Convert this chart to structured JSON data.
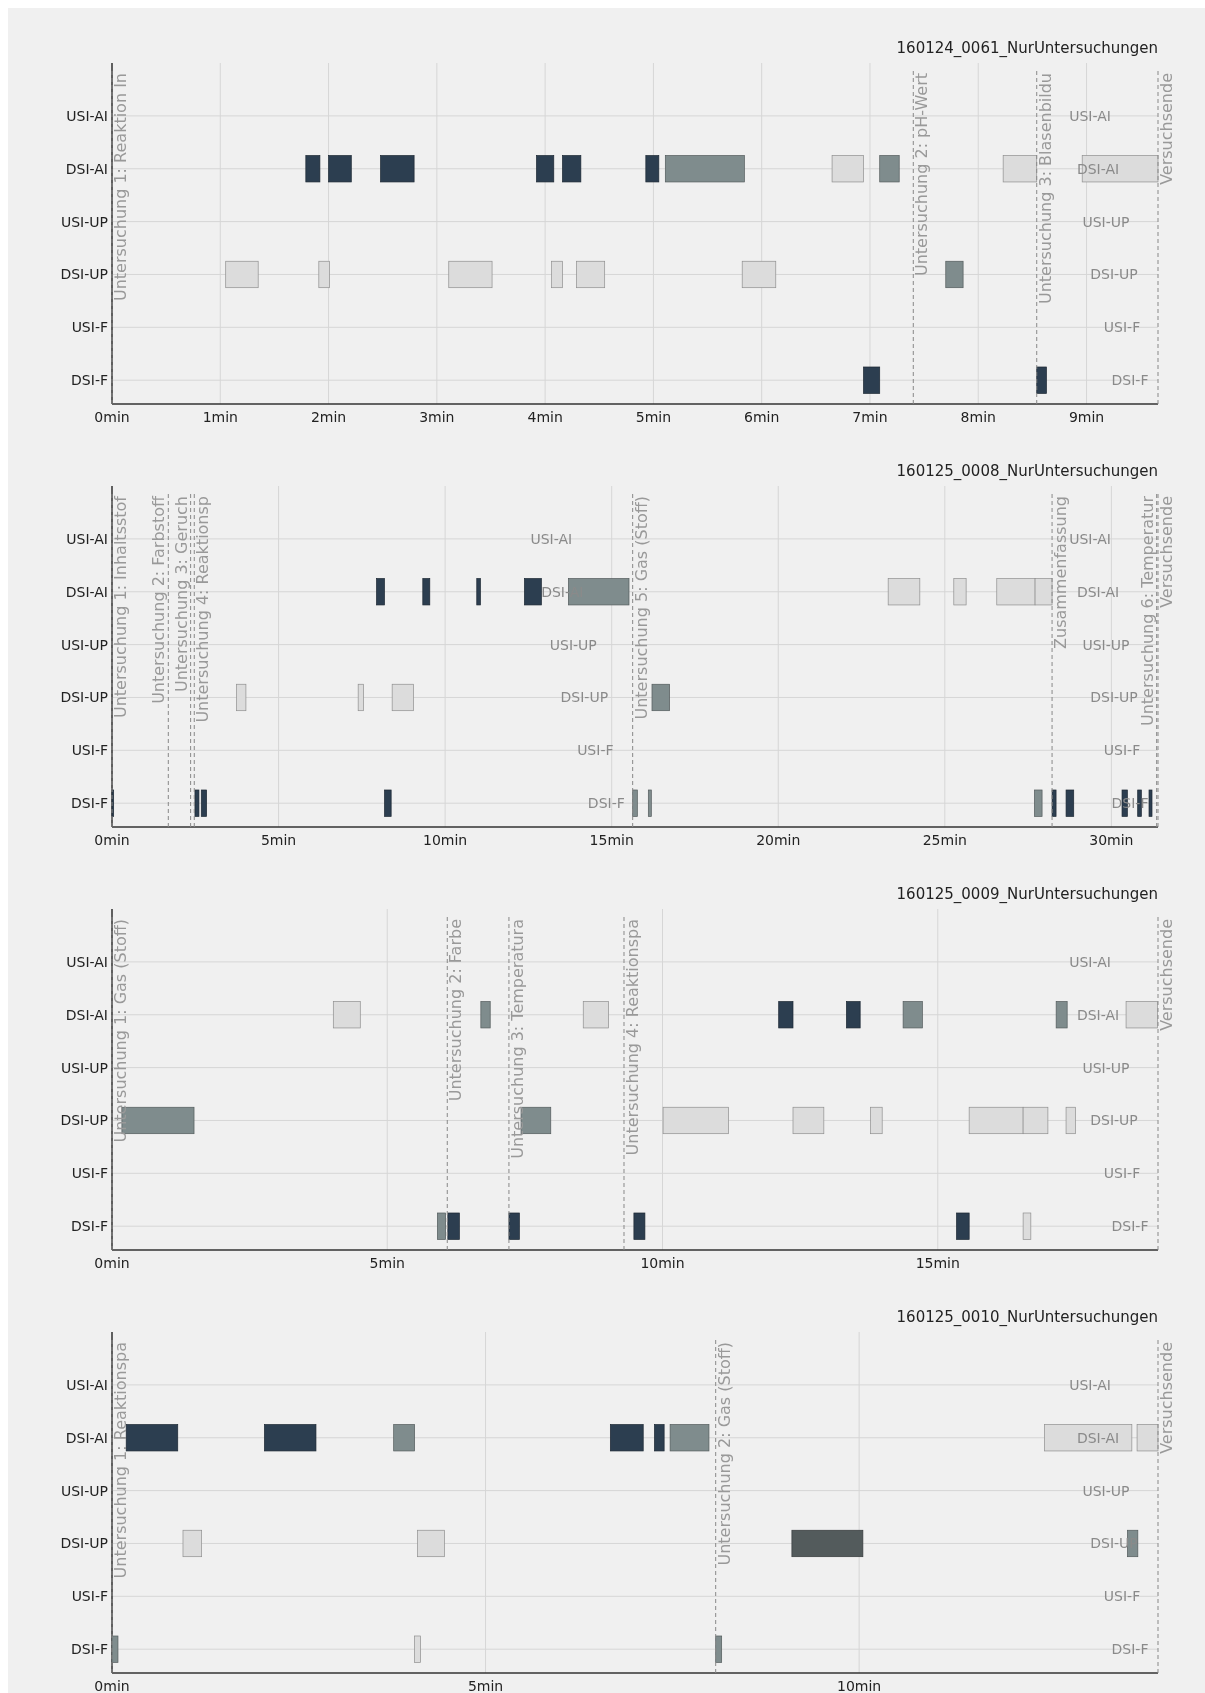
{
  "chart_data": [
    {
      "type": "bar",
      "orientation": "horizontal",
      "title": "160124_0061_NurUntersuchungen",
      "categories": [
        "USI-AI",
        "DSI-AI",
        "USI-UP",
        "DSI-UP",
        "USI-F",
        "DSI-F"
      ],
      "y2_categories": [
        "USI-AI",
        "DSI-AI",
        "USI-UP",
        "DSI-UP",
        "USI-F",
        "DSI-F"
      ],
      "xlim": [
        0,
        9.66
      ],
      "xticks": [
        {
          "value": 0,
          "label": "0min"
        },
        {
          "value": 1,
          "label": "1min"
        },
        {
          "value": 2,
          "label": "2min"
        },
        {
          "value": 3,
          "label": "3min"
        },
        {
          "value": 4,
          "label": "4min"
        },
        {
          "value": 5,
          "label": "5min"
        },
        {
          "value": 6,
          "label": "6min"
        },
        {
          "value": 7,
          "label": "7min"
        },
        {
          "value": 8,
          "label": "8min"
        },
        {
          "value": 9,
          "label": "9min"
        }
      ],
      "grid": true,
      "ref_lines": [
        {
          "axis": "x",
          "value": 0,
          "label": "Untersuchung 1: Reaktion In",
          "line_style": "dashed"
        },
        {
          "axis": "x",
          "value": 7.4,
          "label": "Untersuchung 2: pH-Wert",
          "line_style": "dashed"
        },
        {
          "axis": "x",
          "value": 8.54,
          "label": "Untersuchung 3: Blasenbildu",
          "line_style": "dashed"
        },
        {
          "axis": "x",
          "value": 9.66,
          "label": "Versuchsende",
          "line_style": "dashed"
        }
      ],
      "series": [
        {
          "color": "#2c3e50",
          "base": [
            null,
            1.79,
            null,
            null,
            null,
            6.94
          ],
          "values": [
            null,
            0.13,
            null,
            null,
            null,
            0.15
          ]
        },
        {
          "color": "#2c3e50",
          "base": [
            null,
            2.0,
            null,
            null,
            null,
            8.54
          ],
          "values": [
            null,
            0.21,
            null,
            null,
            null,
            0.09
          ]
        },
        {
          "color": "#2c3e50",
          "base": [
            null,
            2.48,
            null,
            null,
            null,
            null
          ],
          "values": [
            null,
            0.31,
            null,
            null,
            null,
            null
          ]
        },
        {
          "color": "#2c3e50",
          "base": [
            null,
            3.92,
            null,
            null,
            null,
            null
          ],
          "values": [
            null,
            0.16,
            null,
            null,
            null,
            null
          ]
        },
        {
          "color": "#2c3e50",
          "base": [
            null,
            4.16,
            null,
            null,
            null,
            null
          ],
          "values": [
            null,
            0.17,
            null,
            null,
            null,
            null
          ]
        },
        {
          "color": "#2c3e50",
          "base": [
            null,
            4.93,
            null,
            null,
            null,
            null
          ],
          "values": [
            null,
            0.12,
            null,
            null,
            null,
            null
          ]
        },
        {
          "color": "#7f8c8d",
          "base": [
            null,
            5.11,
            null,
            7.7,
            null,
            null
          ],
          "values": [
            null,
            0.73,
            null,
            0.16,
            null,
            null
          ]
        },
        {
          "color": "#7f8c8d",
          "base": [
            null,
            7.09,
            null,
            null,
            null,
            null
          ],
          "values": [
            null,
            0.18,
            null,
            null,
            null,
            null
          ]
        },
        {
          "color": "#dcdcdc",
          "base": [
            null,
            6.65,
            null,
            1.05,
            null,
            null
          ],
          "values": [
            null,
            0.29,
            null,
            0.3,
            null,
            null
          ]
        },
        {
          "color": "#dcdcdc",
          "base": [
            null,
            8.23,
            null,
            1.91,
            null,
            null
          ],
          "values": [
            null,
            0.31,
            null,
            0.1,
            null,
            null
          ]
        },
        {
          "color": "#dcdcdc",
          "base": [
            null,
            8.96,
            null,
            3.11,
            null,
            null
          ],
          "values": [
            null,
            0.7,
            null,
            0.4,
            null,
            null
          ]
        },
        {
          "color": "#dcdcdc",
          "base": [
            null,
            null,
            null,
            4.06,
            null,
            null
          ],
          "values": [
            null,
            null,
            null,
            0.1,
            null,
            null
          ]
        },
        {
          "color": "#dcdcdc",
          "base": [
            null,
            null,
            null,
            4.29,
            null,
            null
          ],
          "values": [
            null,
            null,
            null,
            0.26,
            null,
            null
          ]
        },
        {
          "color": "#dcdcdc",
          "base": [
            null,
            null,
            null,
            5.82,
            null,
            null
          ],
          "values": [
            null,
            null,
            null,
            0.31,
            null,
            null
          ]
        }
      ]
    },
    {
      "type": "bar",
      "orientation": "horizontal",
      "title": "160125_0008_NurUntersuchungen",
      "categories": [
        "USI-AI",
        "DSI-AI",
        "USI-UP",
        "DSI-UP",
        "USI-F",
        "DSI-F"
      ],
      "y2_categories": [
        "USI-AI",
        "DSI-AI",
        "USI-UP",
        "DSI-UP",
        "USI-F",
        "DSI-F"
      ],
      "xlim": [
        0,
        31.4
      ],
      "xticks": [
        {
          "value": 0,
          "label": "0min"
        },
        {
          "value": 5,
          "label": "5min"
        },
        {
          "value": 10,
          "label": "10min"
        },
        {
          "value": 15,
          "label": "15min"
        },
        {
          "value": 20,
          "label": "20min"
        },
        {
          "value": 25,
          "label": "25min"
        },
        {
          "value": 30,
          "label": "30min"
        }
      ],
      "grid": true,
      "ref_lines": [
        {
          "axis": "x",
          "value": 0,
          "label": "Untersuchung 1: Inhaltsstof",
          "line_style": "dashed"
        },
        {
          "axis": "x",
          "value": 1.69,
          "label": "Untersuchung 2: Farbstoff",
          "line_style": "dashed"
        },
        {
          "axis": "x",
          "value": 2.36,
          "label": "Untersuchung 3: Geruch",
          "line_style": "dashed"
        },
        {
          "axis": "x",
          "value": 2.47,
          "label": "Untersuchung 4: Reaktionsp",
          "line_style": "dashed"
        },
        {
          "axis": "x",
          "value": 15.63,
          "label": "Untersuchung 5: Gas (Stoff)",
          "line_style": "dashed"
        },
        {
          "axis": "x",
          "value": 28.22,
          "label": "Zusammenfassung",
          "line_style": "dashed"
        },
        {
          "axis": "x",
          "value": 31.36,
          "label": "Untersuchung 6: Temperatur",
          "line_style": "dashed"
        },
        {
          "axis": "x",
          "value": 31.4,
          "label": "Versuchsende",
          "line_style": "dashed"
        }
      ],
      "annotations": [
        "USI-AI",
        "DSI-AI",
        "USI-UP",
        "DSI-UP",
        "USI-F",
        "DSI-F"
      ],
      "series": [
        {
          "color": "#2c3e50",
          "base": [
            null,
            7.94,
            null,
            null,
            null,
            0
          ],
          "values": [
            null,
            0.24,
            null,
            null,
            null,
            0.05
          ]
        },
        {
          "color": "#2c3e50",
          "base": [
            null,
            9.33,
            null,
            null,
            null,
            2.49
          ],
          "values": [
            null,
            0.21,
            null,
            null,
            null,
            0.12
          ]
        },
        {
          "color": "#2c3e50",
          "base": [
            null,
            10.95,
            null,
            null,
            null,
            2.68
          ],
          "values": [
            null,
            0.11,
            null,
            null,
            null,
            0.16
          ]
        },
        {
          "color": "#2c3e50",
          "base": [
            null,
            12.38,
            null,
            null,
            null,
            8.18
          ],
          "values": [
            null,
            0.51,
            null,
            null,
            null,
            0.2
          ]
        },
        {
          "color": "#2c3e50",
          "base": [
            null,
            null,
            null,
            null,
            null,
            28.22
          ],
          "values": [
            null,
            null,
            null,
            null,
            null,
            0.12
          ]
        },
        {
          "color": "#2c3e50",
          "base": [
            null,
            null,
            null,
            null,
            null,
            28.64
          ],
          "values": [
            null,
            null,
            null,
            null,
            null,
            0.23
          ]
        },
        {
          "color": "#2c3e50",
          "base": [
            null,
            null,
            null,
            null,
            null,
            30.32
          ],
          "values": [
            null,
            null,
            null,
            null,
            null,
            0.16
          ]
        },
        {
          "color": "#2c3e50",
          "base": [
            null,
            null,
            null,
            null,
            null,
            30.79
          ],
          "values": [
            null,
            null,
            null,
            null,
            null,
            0.11
          ]
        },
        {
          "color": "#2c3e50",
          "base": [
            null,
            null,
            null,
            null,
            null,
            31.13
          ],
          "values": [
            null,
            null,
            null,
            null,
            null,
            0.09
          ]
        },
        {
          "color": "#7f8c8d",
          "base": [
            null,
            13.7,
            null,
            16.21,
            null,
            15.63
          ],
          "values": [
            null,
            1.82,
            null,
            0.53,
            null,
            0.14
          ]
        },
        {
          "color": "#7f8c8d",
          "base": [
            null,
            null,
            null,
            null,
            null,
            16.1
          ],
          "values": [
            null,
            null,
            null,
            null,
            null,
            0.09
          ]
        },
        {
          "color": "#7f8c8d",
          "base": [
            null,
            null,
            null,
            null,
            null,
            27.69
          ],
          "values": [
            null,
            null,
            null,
            null,
            null,
            0.23
          ]
        },
        {
          "color": "#dcdcdc",
          "base": [
            null,
            23.3,
            null,
            3.74,
            null,
            null
          ],
          "values": [
            null,
            0.95,
            null,
            0.28,
            null,
            null
          ]
        },
        {
          "color": "#dcdcdc",
          "base": [
            null,
            25.27,
            null,
            7.39,
            null,
            null
          ],
          "values": [
            null,
            0.37,
            null,
            0.16,
            null,
            null
          ]
        },
        {
          "color": "#dcdcdc",
          "base": [
            null,
            26.56,
            null,
            8.41,
            null,
            null
          ],
          "values": [
            null,
            1.15,
            null,
            0.64,
            null,
            null
          ]
        },
        {
          "color": "#dcdcdc",
          "base": [
            null,
            27.71,
            null,
            null,
            null,
            null
          ],
          "values": [
            null,
            0.51,
            null,
            null,
            null,
            null
          ]
        }
      ]
    },
    {
      "type": "bar",
      "orientation": "horizontal",
      "title": "160125_0009_NurUntersuchungen",
      "categories": [
        "USI-AI",
        "DSI-AI",
        "USI-UP",
        "DSI-UP",
        "USI-F",
        "DSI-F"
      ],
      "y2_categories": [
        "USI-AI",
        "DSI-AI",
        "USI-UP",
        "DSI-UP",
        "USI-F",
        "DSI-F"
      ],
      "xlim": [
        0,
        19
      ],
      "xticks": [
        {
          "value": 0,
          "label": "0min"
        },
        {
          "value": 5,
          "label": "5min"
        },
        {
          "value": 10,
          "label": "10min"
        },
        {
          "value": 15,
          "label": "15min"
        }
      ],
      "grid": true,
      "ref_lines": [
        {
          "axis": "x",
          "value": 0,
          "label": "Untersuchung 1: Gas (Stoff)",
          "line_style": "dashed"
        },
        {
          "axis": "x",
          "value": 6.09,
          "label": "Untersuchung 2: Farbe",
          "line_style": "dashed"
        },
        {
          "axis": "x",
          "value": 7.21,
          "label": "Untersuchung 3: Temperatura",
          "line_style": "dashed"
        },
        {
          "axis": "x",
          "value": 9.3,
          "label": "Untersuchung 4: Reaktionspa",
          "line_style": "dashed"
        },
        {
          "axis": "x",
          "value": 19,
          "label": "Versuchsende",
          "line_style": "dashed"
        }
      ],
      "series": [
        {
          "color": "#2c3e50",
          "base": [
            null,
            12.11,
            null,
            null,
            null,
            6.1
          ],
          "values": [
            null,
            0.26,
            null,
            null,
            null,
            0.21
          ]
        },
        {
          "color": "#2c3e50",
          "base": [
            null,
            13.34,
            null,
            null,
            null,
            7.21
          ],
          "values": [
            null,
            0.25,
            null,
            null,
            null,
            0.19
          ]
        },
        {
          "color": "#2c3e50",
          "base": [
            null,
            null,
            null,
            null,
            null,
            9.48
          ],
          "values": [
            null,
            null,
            null,
            null,
            null,
            0.2
          ]
        },
        {
          "color": "#2c3e50",
          "base": [
            null,
            null,
            null,
            null,
            null,
            15.34
          ],
          "values": [
            null,
            null,
            null,
            null,
            null,
            0.23
          ]
        },
        {
          "color": "#7f8c8d",
          "base": [
            null,
            6.7,
            null,
            0.18,
            null,
            5.91
          ],
          "values": [
            null,
            0.17,
            null,
            1.31,
            null,
            0.15
          ]
        },
        {
          "color": "#7f8c8d",
          "base": [
            null,
            14.37,
            null,
            7.43,
            null,
            null
          ],
          "values": [
            null,
            0.35,
            null,
            0.54,
            null,
            null
          ]
        },
        {
          "color": "#7f8c8d",
          "base": [
            null,
            17.15,
            null,
            null,
            null,
            null
          ],
          "values": [
            null,
            0.2,
            null,
            null,
            null,
            null
          ]
        },
        {
          "color": "#dcdcdc",
          "base": [
            null,
            4.02,
            null,
            10.01,
            null,
            16.55
          ],
          "values": [
            null,
            0.49,
            null,
            1.19,
            null,
            0.14
          ]
        },
        {
          "color": "#dcdcdc",
          "base": [
            null,
            8.56,
            null,
            12.37,
            null,
            null
          ],
          "values": [
            null,
            0.46,
            null,
            0.56,
            null,
            null
          ]
        },
        {
          "color": "#dcdcdc",
          "base": [
            null,
            18.42,
            null,
            13.78,
            null,
            null
          ],
          "values": [
            null,
            0.57,
            null,
            0.21,
            null,
            null
          ]
        },
        {
          "color": "#dcdcdc",
          "base": [
            null,
            null,
            null,
            15.57,
            null,
            null
          ],
          "values": [
            null,
            null,
            null,
            0.98,
            null,
            null
          ]
        },
        {
          "color": "#dcdcdc",
          "base": [
            null,
            null,
            null,
            16.55,
            null,
            null
          ],
          "values": [
            null,
            null,
            null,
            0.45,
            null,
            null
          ]
        },
        {
          "color": "#dcdcdc",
          "base": [
            null,
            null,
            null,
            17.33,
            null,
            null
          ],
          "values": [
            null,
            null,
            null,
            0.17,
            null,
            null
          ]
        }
      ]
    },
    {
      "type": "bar",
      "orientation": "horizontal",
      "title": "160125_0010_NurUntersuchungen",
      "categories": [
        "USI-AI",
        "DSI-AI",
        "USI-UP",
        "DSI-UP",
        "USI-F",
        "DSI-F"
      ],
      "y2_categories": [
        "USI-AI",
        "DSI-AI",
        "USI-UP",
        "DSI-UP",
        "USI-F",
        "DSI-F"
      ],
      "xlim": [
        0,
        14
      ],
      "xticks": [
        {
          "value": 0,
          "label": "0min"
        },
        {
          "value": 5,
          "label": "5min"
        },
        {
          "value": 10,
          "label": "10min"
        }
      ],
      "grid": true,
      "ref_lines": [
        {
          "axis": "x",
          "value": 0,
          "label": "Untersuchung 1: Reaktionspa",
          "line_style": "dashed"
        },
        {
          "axis": "x",
          "value": 8.08,
          "label": "Untersuchung 2: Gas (Stoff)",
          "line_style": "dashed"
        },
        {
          "axis": "x",
          "value": 14,
          "label": "Versuchsende",
          "line_style": "dashed"
        }
      ],
      "series": [
        {
          "color": "#2c3e50",
          "base": [
            null,
            0.19,
            null,
            null,
            null,
            null
          ],
          "values": [
            null,
            0.69,
            null,
            null,
            null,
            null
          ]
        },
        {
          "color": "#2c3e50",
          "base": [
            null,
            2.04,
            null,
            null,
            null,
            null
          ],
          "values": [
            null,
            0.69,
            null,
            null,
            null,
            null
          ]
        },
        {
          "color": "#2c3e50",
          "base": [
            null,
            6.67,
            null,
            null,
            null,
            null
          ],
          "values": [
            null,
            0.44,
            null,
            null,
            null,
            null
          ]
        },
        {
          "color": "#2c3e50",
          "base": [
            null,
            7.26,
            null,
            null,
            null,
            null
          ],
          "values": [
            null,
            0.13,
            null,
            null,
            null,
            null
          ]
        },
        {
          "color": "#7f8c8d",
          "base": [
            null,
            3.77,
            null,
            13.59,
            null,
            0
          ],
          "values": [
            null,
            0.28,
            null,
            0.14,
            null,
            0.08
          ]
        },
        {
          "color": "#7f8c8d",
          "base": [
            null,
            7.47,
            null,
            null,
            null,
            8.08
          ],
          "values": [
            null,
            0.52,
            null,
            null,
            null,
            0.08
          ]
        },
        {
          "color": "#535b5c",
          "base": [
            null,
            null,
            null,
            9.1,
            null,
            null
          ],
          "values": [
            null,
            null,
            null,
            0.95,
            null,
            null
          ]
        },
        {
          "color": "#dcdcdc",
          "base": [
            null,
            12.48,
            null,
            0.95,
            null,
            4.05
          ],
          "values": [
            null,
            1.17,
            null,
            0.25,
            null,
            0.08
          ]
        },
        {
          "color": "#dcdcdc",
          "base": [
            null,
            13.72,
            null,
            4.09,
            null,
            null
          ],
          "values": [
            null,
            0.28,
            null,
            0.36,
            null,
            null
          ]
        }
      ]
    }
  ]
}
